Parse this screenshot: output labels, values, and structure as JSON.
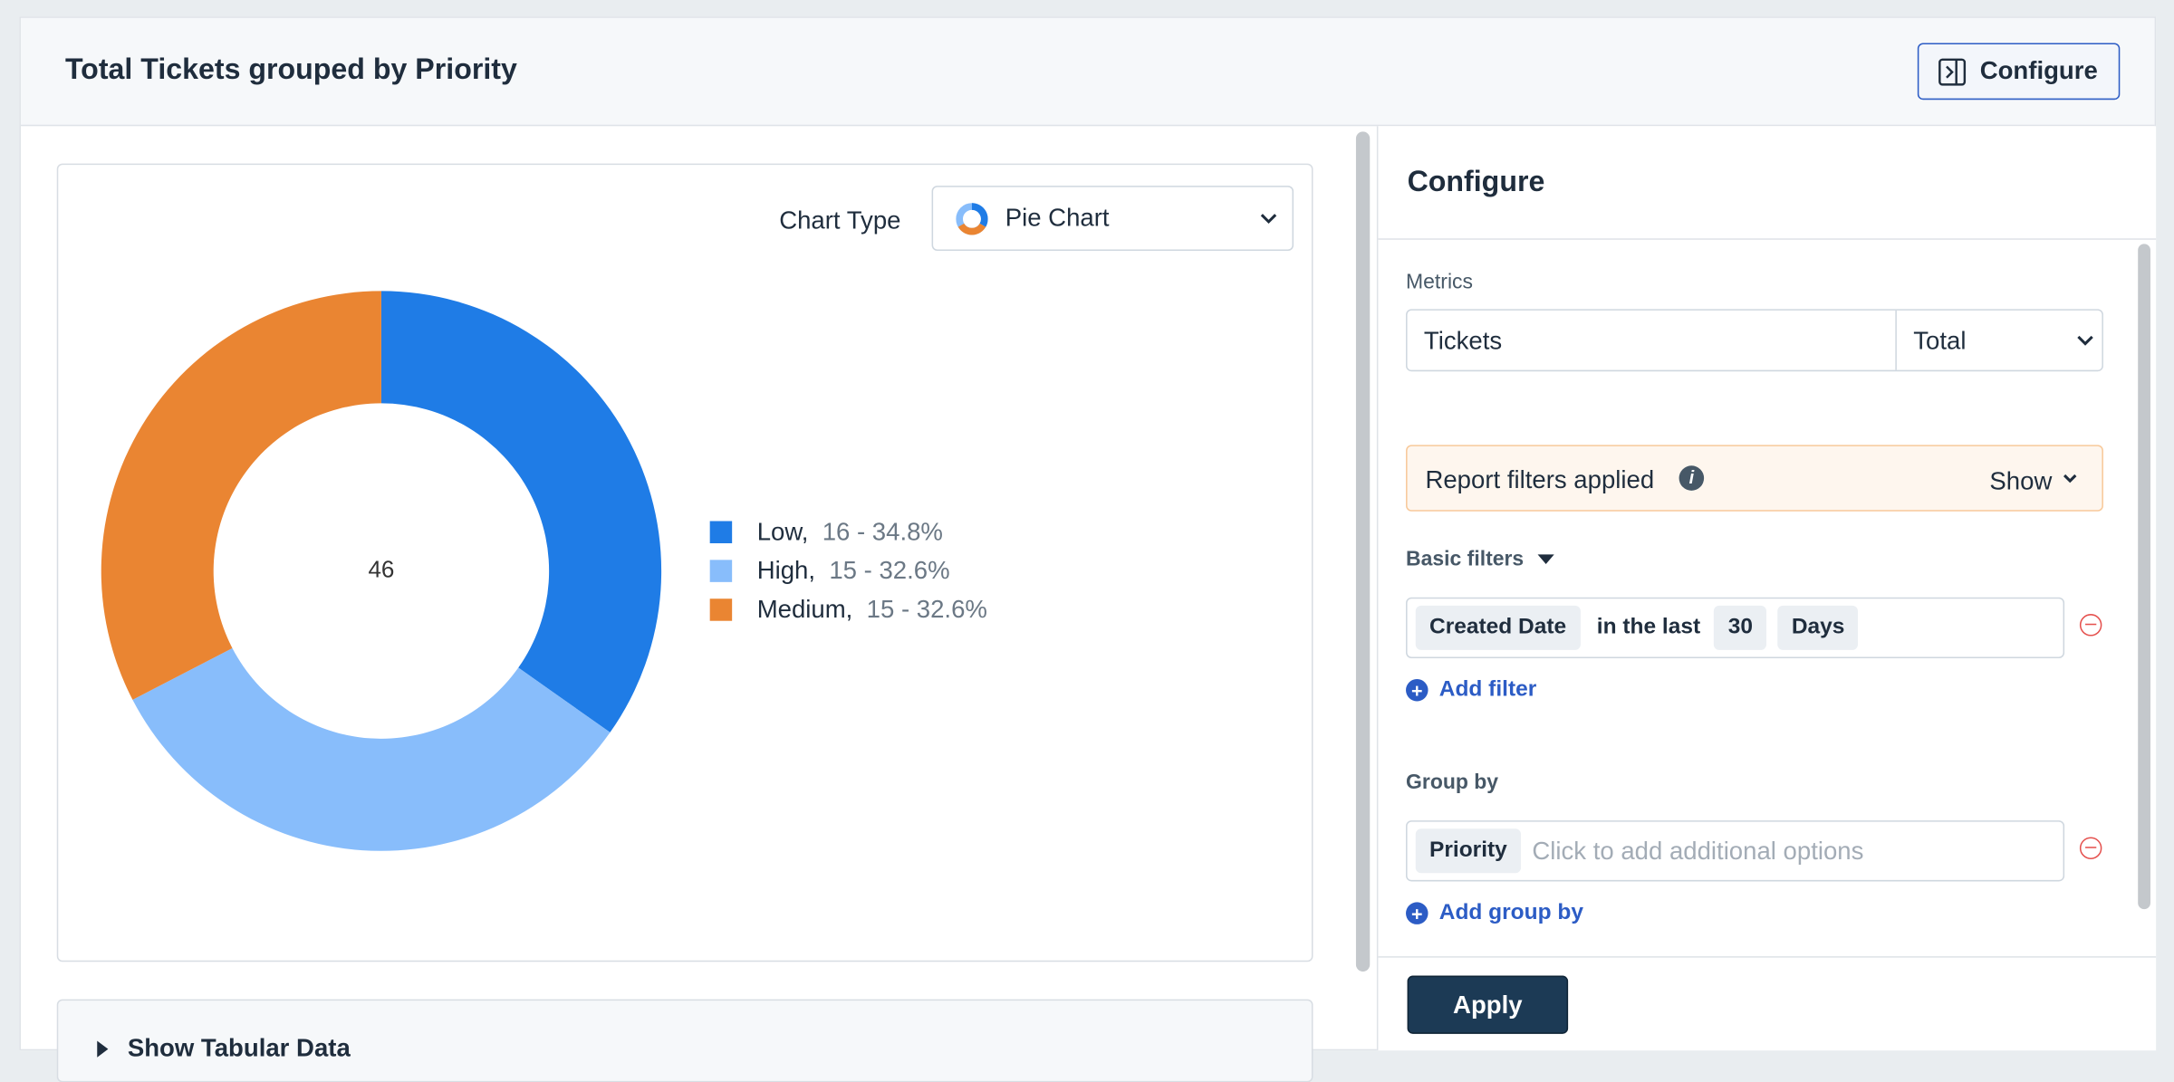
{
  "header": {
    "title": "Total Tickets grouped by Priority",
    "button": "Configure"
  },
  "chart_controls": {
    "label": "Chart Type",
    "selected": "Pie Chart"
  },
  "chart_data": {
    "type": "pie",
    "categories": [
      "Low",
      "High",
      "Medium"
    ],
    "values": [
      16,
      15,
      15
    ],
    "value_labels": [
      "16 - 34.8%",
      "15 - 32.6%",
      "15 - 32.6%"
    ],
    "colors": [
      "#1f7ce6",
      "#88bdfb",
      "#ea8532"
    ],
    "donut": true,
    "center_label": "46",
    "legend": "right"
  },
  "tabular": {
    "toggle": "Show Tabular Data"
  },
  "configure": {
    "title": "Configure",
    "metrics_label": "Metrics",
    "metric": "Tickets",
    "aggregation": "Total",
    "report_filters": {
      "text": "Report filters applied",
      "toggle": "Show"
    },
    "basic_filters": {
      "label": "Basic filters",
      "field": "Created Date",
      "operator": "in the last",
      "amount": "30",
      "unit": "Days",
      "add": "Add filter"
    },
    "group_by": {
      "label": "Group by",
      "field": "Priority",
      "placeholder": "Click to add additional options",
      "add": "Add group by"
    },
    "apply": "Apply"
  }
}
